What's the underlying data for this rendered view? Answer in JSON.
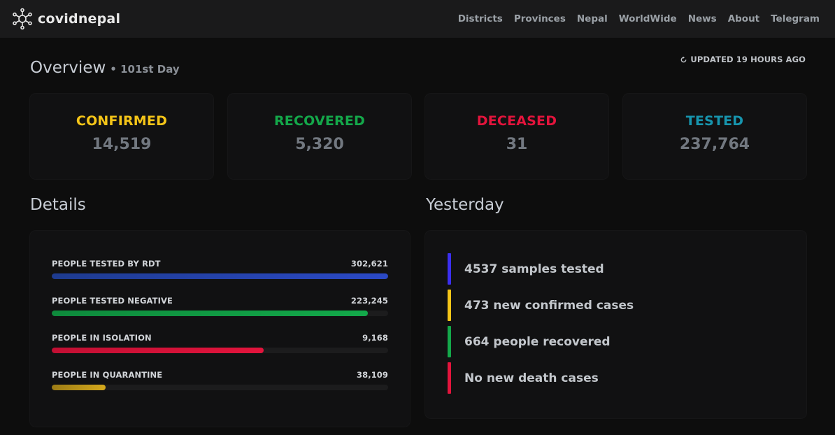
{
  "brand": {
    "name": "covidnepal"
  },
  "nav": [
    "Districts",
    "Provinces",
    "Nepal",
    "WorldWide",
    "News",
    "About",
    "Telegram"
  ],
  "overview": {
    "title": "Overview",
    "day": "• 101st Day",
    "updated": "UPDATED 19 HOURS AGO"
  },
  "stats": [
    {
      "label": "CONFIRMED",
      "value": "14,519",
      "color": "#f5c518"
    },
    {
      "label": "RECOVERED",
      "value": "5,320",
      "color": "#14a84a"
    },
    {
      "label": "DECEASED",
      "value": "31",
      "color": "#e3143c"
    },
    {
      "label": "TESTED",
      "value": "237,764",
      "color": "#1795ae"
    }
  ],
  "details": {
    "title": "Details",
    "rows": [
      {
        "label": "PEOPLE TESTED BY RDT",
        "value": "302,621",
        "fraction": 1.0,
        "color": "#2b49c5",
        "color2": "#1e3b8f"
      },
      {
        "label": "PEOPLE TESTED NEGATIVE",
        "value": "223,245",
        "fraction": 0.94,
        "color": "#13a94a",
        "color2": "#0e8a3c"
      },
      {
        "label": "PEOPLE IN ISOLATION",
        "value": "9,168",
        "fraction": 0.63,
        "color": "#e3143c",
        "color2": "#c20f33"
      },
      {
        "label": "PEOPLE IN QUARANTINE",
        "value": "38,109",
        "fraction": 0.16,
        "color": "#d4a81c",
        "color2": "#9c7c16"
      }
    ]
  },
  "yesterday": {
    "title": "Yesterday",
    "items": [
      {
        "text": "4537 samples tested",
        "color": "#3b2ff0"
      },
      {
        "text": "473 new confirmed cases",
        "color": "#f5c518"
      },
      {
        "text": "664 people recovered",
        "color": "#14a84a"
      },
      {
        "text": "No new death cases",
        "color": "#e3143c"
      }
    ]
  }
}
